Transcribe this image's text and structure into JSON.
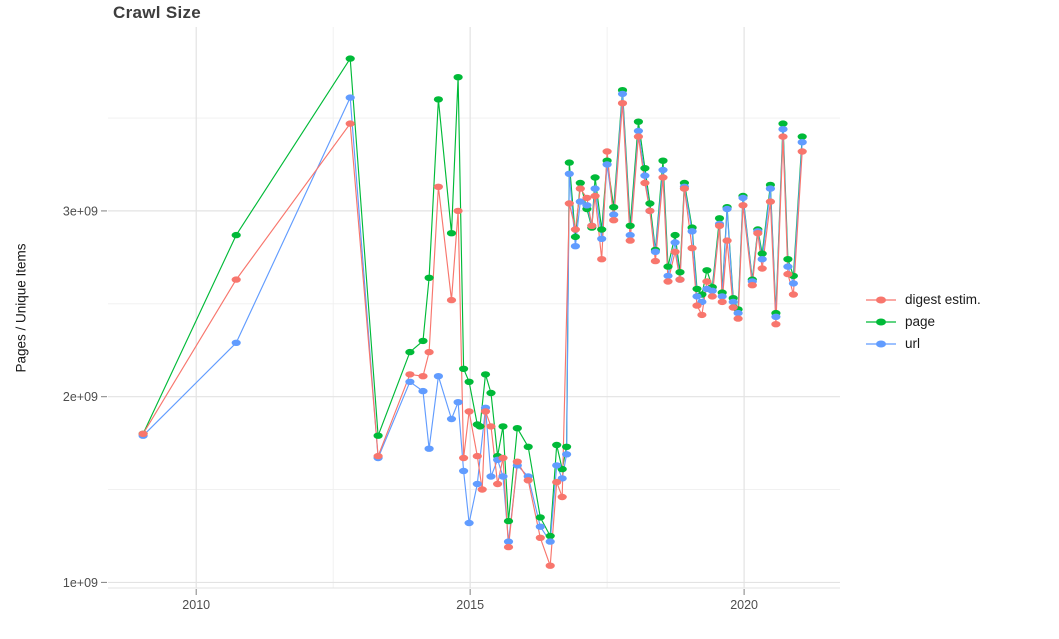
{
  "chart_data": {
    "type": "line",
    "title": "Crawl Size",
    "xlabel": "",
    "ylabel": "Pages / Unique Items",
    "x_unit": "year",
    "y_values_scale": "1e9",
    "xlim": [
      2008.39,
      2021.75
    ],
    "ylim": [
      0.97,
      3.99
    ],
    "grid": true,
    "legend_position": "right",
    "x_ticks": [
      {
        "v": 2010,
        "label": "2010"
      },
      {
        "v": 2015,
        "label": "2015"
      },
      {
        "v": 2020,
        "label": "2020"
      }
    ],
    "x_minor_ticks": [
      2012.5,
      2017.5
    ],
    "y_ticks": [
      {
        "v": 1,
        "label": "1e+09"
      },
      {
        "v": 2,
        "label": "2e+09"
      },
      {
        "v": 3,
        "label": "3e+09"
      }
    ],
    "y_minor_ticks": [
      1.5,
      2.5,
      3.5
    ],
    "z_order": [
      "page",
      "url",
      "digest estim."
    ],
    "series": [
      {
        "name": "digest estim.",
        "color": "#F8766D",
        "points": [
          [
            2009.03,
            1.8
          ],
          [
            2010.73,
            2.63
          ],
          [
            2012.81,
            3.47
          ],
          [
            2013.32,
            1.68
          ],
          [
            2013.9,
            2.12
          ],
          [
            2014.14,
            2.11
          ],
          [
            2014.25,
            2.24
          ],
          [
            2014.42,
            3.13
          ],
          [
            2014.66,
            2.52
          ],
          [
            2014.78,
            3.0
          ],
          [
            2014.88,
            1.67
          ],
          [
            2014.98,
            1.92
          ],
          [
            2015.13,
            1.68
          ],
          [
            2015.22,
            1.5
          ],
          [
            2015.28,
            1.92
          ],
          [
            2015.38,
            1.84
          ],
          [
            2015.5,
            1.53
          ],
          [
            2015.6,
            1.67
          ],
          [
            2015.7,
            1.19
          ],
          [
            2015.86,
            1.65
          ],
          [
            2016.06,
            1.55
          ],
          [
            2016.28,
            1.24
          ],
          [
            2016.46,
            1.09
          ],
          [
            2016.58,
            1.54
          ],
          [
            2016.68,
            1.46
          ],
          [
            2016.81,
            3.04
          ],
          [
            2016.92,
            2.9
          ],
          [
            2017.01,
            3.12
          ],
          [
            2017.13,
            3.07
          ],
          [
            2017.22,
            2.92
          ],
          [
            2017.28,
            3.08
          ],
          [
            2017.4,
            2.74
          ],
          [
            2017.5,
            3.32
          ],
          [
            2017.62,
            2.95
          ],
          [
            2017.78,
            3.58
          ],
          [
            2017.92,
            2.84
          ],
          [
            2018.07,
            3.4
          ],
          [
            2018.19,
            3.15
          ],
          [
            2018.28,
            3.0
          ],
          [
            2018.38,
            2.73
          ],
          [
            2018.52,
            3.18
          ],
          [
            2018.61,
            2.62
          ],
          [
            2018.74,
            2.78
          ],
          [
            2018.83,
            2.63
          ],
          [
            2018.91,
            3.12
          ],
          [
            2019.05,
            2.8
          ],
          [
            2019.14,
            2.49
          ],
          [
            2019.23,
            2.44
          ],
          [
            2019.32,
            2.62
          ],
          [
            2019.42,
            2.54
          ],
          [
            2019.55,
            2.92
          ],
          [
            2019.6,
            2.51
          ],
          [
            2019.69,
            2.84
          ],
          [
            2019.8,
            2.48
          ],
          [
            2019.89,
            2.42
          ],
          [
            2019.98,
            3.03
          ],
          [
            2020.15,
            2.6
          ],
          [
            2020.25,
            2.88
          ],
          [
            2020.33,
            2.69
          ],
          [
            2020.48,
            3.05
          ],
          [
            2020.58,
            2.39
          ],
          [
            2020.71,
            3.4
          ],
          [
            2020.8,
            2.66
          ],
          [
            2020.9,
            2.55
          ],
          [
            2021.06,
            3.32
          ]
        ]
      },
      {
        "name": "page",
        "color": "#00BA38",
        "points": [
          [
            2009.03,
            1.8
          ],
          [
            2010.73,
            2.87
          ],
          [
            2012.81,
            3.82
          ],
          [
            2013.32,
            1.79
          ],
          [
            2013.9,
            2.24
          ],
          [
            2014.14,
            2.3
          ],
          [
            2014.25,
            2.64
          ],
          [
            2014.42,
            3.6
          ],
          [
            2014.66,
            2.88
          ],
          [
            2014.78,
            3.72
          ],
          [
            2014.88,
            2.15
          ],
          [
            2014.98,
            2.08
          ],
          [
            2015.13,
            1.85
          ],
          [
            2015.18,
            1.84
          ],
          [
            2015.28,
            2.12
          ],
          [
            2015.38,
            2.02
          ],
          [
            2015.5,
            1.68
          ],
          [
            2015.6,
            1.84
          ],
          [
            2015.7,
            1.33
          ],
          [
            2015.86,
            1.83
          ],
          [
            2016.06,
            1.73
          ],
          [
            2016.28,
            1.35
          ],
          [
            2016.46,
            1.25
          ],
          [
            2016.58,
            1.74
          ],
          [
            2016.68,
            1.61
          ],
          [
            2016.76,
            1.73
          ],
          [
            2016.81,
            3.26
          ],
          [
            2016.92,
            2.86
          ],
          [
            2017.01,
            3.15
          ],
          [
            2017.13,
            3.01
          ],
          [
            2017.22,
            2.91
          ],
          [
            2017.28,
            3.18
          ],
          [
            2017.4,
            2.9
          ],
          [
            2017.5,
            3.27
          ],
          [
            2017.62,
            3.02
          ],
          [
            2017.78,
            3.65
          ],
          [
            2017.92,
            2.92
          ],
          [
            2018.07,
            3.48
          ],
          [
            2018.19,
            3.23
          ],
          [
            2018.28,
            3.04
          ],
          [
            2018.38,
            2.79
          ],
          [
            2018.52,
            3.27
          ],
          [
            2018.61,
            2.7
          ],
          [
            2018.74,
            2.87
          ],
          [
            2018.83,
            2.67
          ],
          [
            2018.91,
            3.15
          ],
          [
            2019.05,
            2.91
          ],
          [
            2019.14,
            2.58
          ],
          [
            2019.23,
            2.55
          ],
          [
            2019.32,
            2.68
          ],
          [
            2019.42,
            2.59
          ],
          [
            2019.55,
            2.96
          ],
          [
            2019.6,
            2.56
          ],
          [
            2019.69,
            3.02
          ],
          [
            2019.8,
            2.53
          ],
          [
            2019.89,
            2.47
          ],
          [
            2019.98,
            3.08
          ],
          [
            2020.15,
            2.63
          ],
          [
            2020.25,
            2.9
          ],
          [
            2020.33,
            2.77
          ],
          [
            2020.48,
            3.14
          ],
          [
            2020.58,
            2.45
          ],
          [
            2020.71,
            3.47
          ],
          [
            2020.8,
            2.74
          ],
          [
            2020.9,
            2.65
          ],
          [
            2021.06,
            3.4
          ]
        ]
      },
      {
        "name": "url",
        "color": "#619CFF",
        "points": [
          [
            2009.03,
            1.79
          ],
          [
            2010.73,
            2.29
          ],
          [
            2012.81,
            3.61
          ],
          [
            2013.32,
            1.67
          ],
          [
            2013.9,
            2.08
          ],
          [
            2014.14,
            2.03
          ],
          [
            2014.25,
            1.72
          ],
          [
            2014.42,
            2.11
          ],
          [
            2014.66,
            1.88
          ],
          [
            2014.78,
            1.97
          ],
          [
            2014.88,
            1.6
          ],
          [
            2014.98,
            1.32
          ],
          [
            2015.13,
            1.53
          ],
          [
            2015.28,
            1.94
          ],
          [
            2015.38,
            1.57
          ],
          [
            2015.5,
            1.66
          ],
          [
            2015.6,
            1.57
          ],
          [
            2015.7,
            1.22
          ],
          [
            2015.86,
            1.63
          ],
          [
            2016.06,
            1.57
          ],
          [
            2016.28,
            1.3
          ],
          [
            2016.46,
            1.22
          ],
          [
            2016.58,
            1.63
          ],
          [
            2016.68,
            1.56
          ],
          [
            2016.76,
            1.69
          ],
          [
            2016.81,
            3.2
          ],
          [
            2016.92,
            2.81
          ],
          [
            2017.01,
            3.05
          ],
          [
            2017.13,
            3.03
          ],
          [
            2017.22,
            2.92
          ],
          [
            2017.28,
            3.12
          ],
          [
            2017.4,
            2.85
          ],
          [
            2017.5,
            3.25
          ],
          [
            2017.62,
            2.98
          ],
          [
            2017.78,
            3.63
          ],
          [
            2017.92,
            2.87
          ],
          [
            2018.07,
            3.43
          ],
          [
            2018.19,
            3.19
          ],
          [
            2018.28,
            3.0
          ],
          [
            2018.38,
            2.78
          ],
          [
            2018.52,
            3.22
          ],
          [
            2018.61,
            2.65
          ],
          [
            2018.74,
            2.83
          ],
          [
            2018.83,
            2.63
          ],
          [
            2018.91,
            3.13
          ],
          [
            2019.05,
            2.89
          ],
          [
            2019.14,
            2.54
          ],
          [
            2019.23,
            2.51
          ],
          [
            2019.32,
            2.58
          ],
          [
            2019.42,
            2.57
          ],
          [
            2019.55,
            2.93
          ],
          [
            2019.6,
            2.54
          ],
          [
            2019.69,
            3.01
          ],
          [
            2019.8,
            2.51
          ],
          [
            2019.89,
            2.45
          ],
          [
            2019.98,
            3.07
          ],
          [
            2020.15,
            2.62
          ],
          [
            2020.25,
            2.89
          ],
          [
            2020.33,
            2.74
          ],
          [
            2020.48,
            3.12
          ],
          [
            2020.58,
            2.43
          ],
          [
            2020.71,
            3.44
          ],
          [
            2020.8,
            2.7
          ],
          [
            2020.9,
            2.61
          ],
          [
            2021.06,
            3.37
          ]
        ]
      }
    ]
  },
  "style": {
    "background": "#FFFFFF",
    "grid_major_color": "#E3E3E3",
    "grid_minor_color": "#EFEFEF",
    "tick_mark_color": "#8C8C8C",
    "tick_label_color": "#4D4D4D",
    "title_color": "#3D3D3D"
  }
}
